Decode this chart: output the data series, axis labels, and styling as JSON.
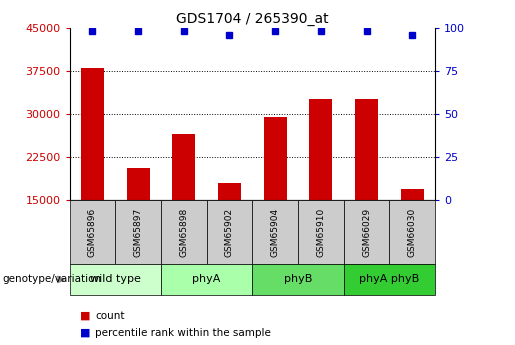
{
  "title": "GDS1704 / 265390_at",
  "samples": [
    "GSM65896",
    "GSM65897",
    "GSM65898",
    "GSM65902",
    "GSM65904",
    "GSM65910",
    "GSM66029",
    "GSM66030"
  ],
  "counts": [
    38000,
    20500,
    26500,
    18000,
    29500,
    32500,
    32500,
    17000
  ],
  "percentile_ranks": [
    98,
    98,
    98,
    96,
    98,
    98,
    98,
    96
  ],
  "groups": [
    {
      "label": "wild type",
      "indices": [
        0,
        1
      ],
      "color": "#ccffcc"
    },
    {
      "label": "phyA",
      "indices": [
        2,
        3
      ],
      "color": "#aaffaa"
    },
    {
      "label": "phyB",
      "indices": [
        4,
        5
      ],
      "color": "#66dd66"
    },
    {
      "label": "phyA phyB",
      "indices": [
        6,
        7
      ],
      "color": "#33cc33"
    }
  ],
  "bar_color": "#cc0000",
  "dot_color": "#0000cc",
  "ylim_left": [
    15000,
    45000
  ],
  "yticks_left": [
    15000,
    22500,
    30000,
    37500,
    45000
  ],
  "yticks_right_vals": [
    0,
    25,
    50,
    75,
    100
  ],
  "ylabel_left_color": "#cc0000",
  "ylabel_right_color": "#0000cc",
  "sample_box_color": "#cccccc",
  "legend_items": [
    "count",
    "percentile rank within the sample"
  ]
}
